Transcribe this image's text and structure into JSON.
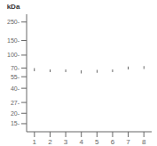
{
  "chart_data": {
    "type": "bar",
    "categories": [
      "1",
      "2",
      "3",
      "4",
      "5",
      "6",
      "7",
      "8"
    ],
    "values": [
      67,
      65,
      65,
      63,
      64,
      65,
      70,
      71
    ],
    "band_height": [
      5.5,
      5.0,
      5.0,
      5.5,
      5.0,
      5.0,
      5.5,
      6.0
    ],
    "color": "#2a2a2a",
    "log": "y",
    "ylim": [
      12,
      310
    ],
    "yticks": [
      {
        "value": 250,
        "label": "250-"
      },
      {
        "value": 150,
        "label": "150-"
      },
      {
        "value": 100,
        "label": "100-"
      },
      {
        "value": 70,
        "label": "70-"
      },
      {
        "value": 55,
        "label": "55-"
      },
      {
        "value": 40,
        "label": "40-"
      },
      {
        "value": 27,
        "label": "27-"
      },
      {
        "value": 20,
        "label": "20-"
      },
      {
        "value": 15,
        "label": "15-"
      }
    ],
    "y_label": "kDa",
    "grid": false
  }
}
